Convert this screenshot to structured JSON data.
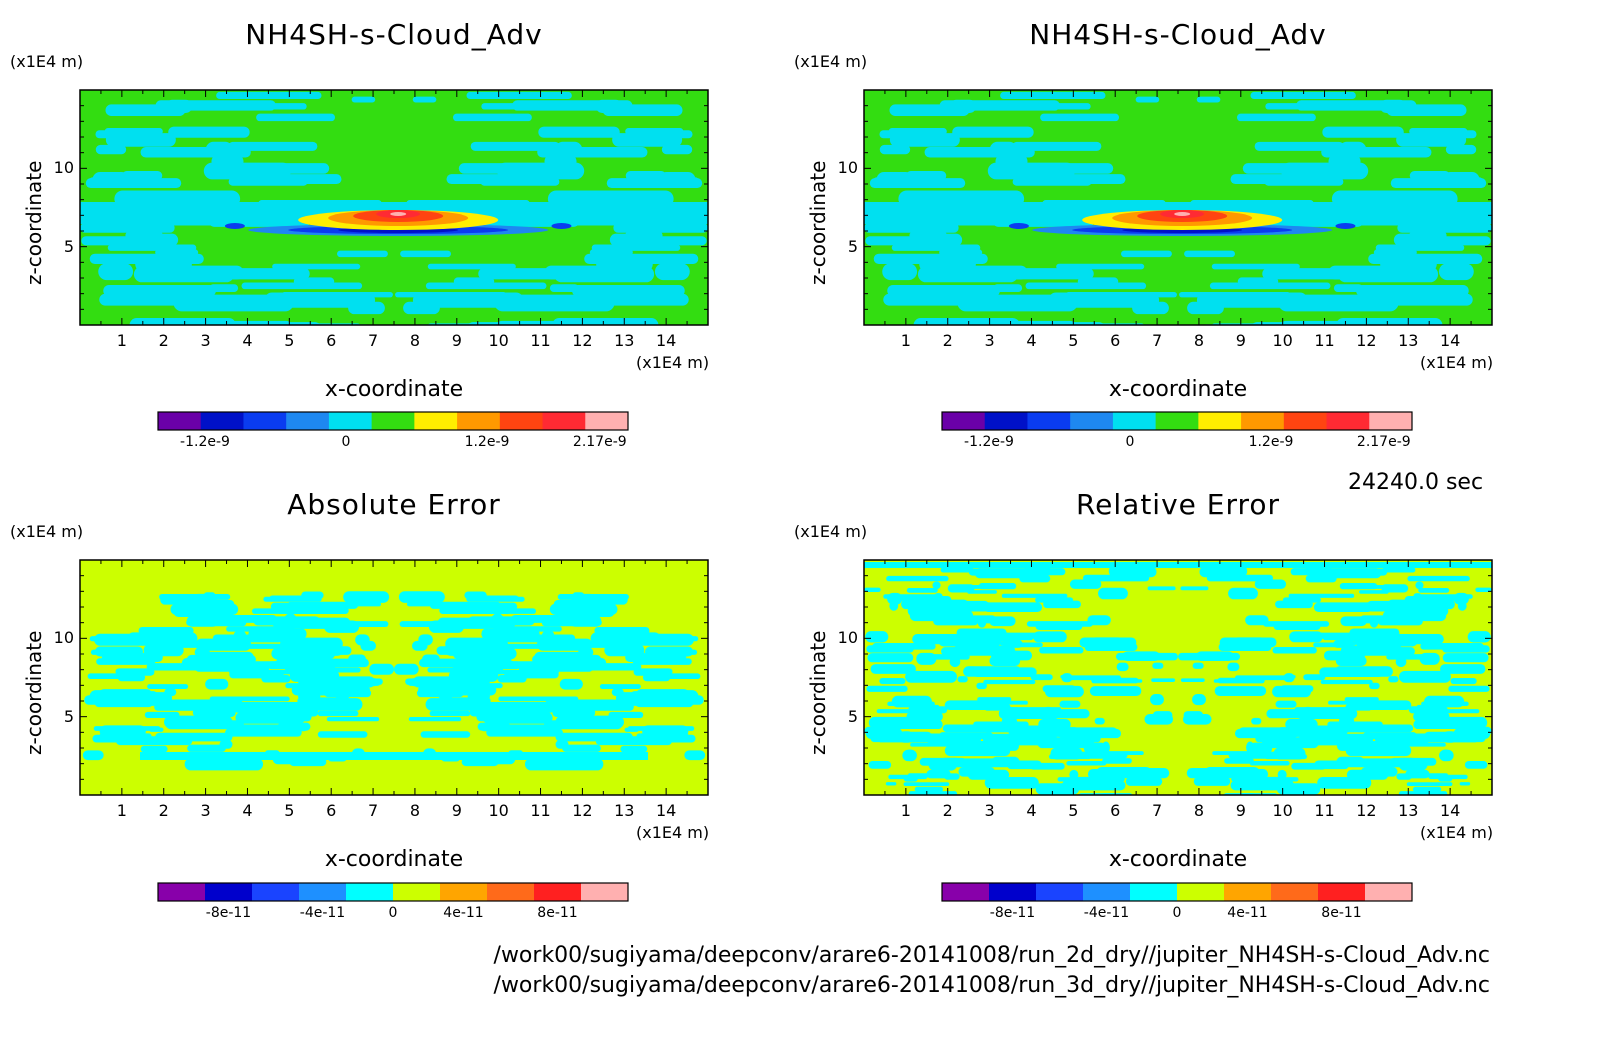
{
  "figure": {
    "time_label": "24240.0 sec",
    "file_paths": [
      "/work00/sugiyama/deepconv/arare6-20141008/run_2d_dry//jupiter_NH4SH-s-Cloud_Adv.nc",
      "/work00/sugiyama/deepconv/arare6-20141008/run_3d_dry//jupiter_NH4SH-s-Cloud_Adv.nc"
    ]
  },
  "colors": {
    "field_levels": [
      "#6a00a8",
      "#0011c8",
      "#0a3cf0",
      "#1e88f0",
      "#00e0f0",
      "#33dd11",
      "#ffee00",
      "#ff9900",
      "#ff4411",
      "#ff2a33",
      "#ffb0b0"
    ],
    "error_levels": [
      "#8800aa",
      "#0000cc",
      "#1a44ff",
      "#1e90ff",
      "#00ffff",
      "#ccff00",
      "#ffa500",
      "#ff6a1a",
      "#ff2020",
      "#ffb0b0"
    ]
  },
  "chart_data": [
    {
      "type": "heatmap",
      "panel": "top-left",
      "title": "NH4SH-s-Cloud_Adv",
      "xlabel": "x-coordinate",
      "ylabel": "z-coordinate",
      "x_unit": "(x1E4 m)",
      "y_unit": "(x1E4 m)",
      "xlim": [
        0,
        15
      ],
      "ylim": [
        0,
        15
      ],
      "xticks": [
        "1",
        "2",
        "3",
        "4",
        "5",
        "6",
        "7",
        "8",
        "9",
        "10",
        "11",
        "12",
        "13",
        "14"
      ],
      "yticks": [
        "5",
        "10"
      ],
      "colorbar_ticks": [
        "-1.2e-9",
        "0",
        "1.2e-9",
        "2.17e-9"
      ],
      "value_range": [
        -1.4e-09,
        2.17e-09
      ]
    },
    {
      "type": "heatmap",
      "panel": "top-right",
      "title": "NH4SH-s-Cloud_Adv",
      "xlabel": "x-coordinate",
      "ylabel": "z-coordinate",
      "x_unit": "(x1E4 m)",
      "y_unit": "(x1E4 m)",
      "xlim": [
        0,
        15
      ],
      "ylim": [
        0,
        15
      ],
      "xticks": [
        "1",
        "2",
        "3",
        "4",
        "5",
        "6",
        "7",
        "8",
        "9",
        "10",
        "11",
        "12",
        "13",
        "14"
      ],
      "yticks": [
        "5",
        "10"
      ],
      "colorbar_ticks": [
        "-1.2e-9",
        "0",
        "1.2e-9",
        "2.17e-9"
      ],
      "value_range": [
        -1.4e-09,
        2.17e-09
      ]
    },
    {
      "type": "heatmap",
      "panel": "bottom-left",
      "title": "Absolute Error",
      "xlabel": "x-coordinate",
      "ylabel": "z-coordinate",
      "x_unit": "(x1E4 m)",
      "y_unit": "(x1E4 m)",
      "xlim": [
        0,
        15
      ],
      "ylim": [
        0,
        15
      ],
      "xticks": [
        "1",
        "2",
        "3",
        "4",
        "5",
        "6",
        "7",
        "8",
        "9",
        "10",
        "11",
        "12",
        "13",
        "14"
      ],
      "yticks": [
        "5",
        "10"
      ],
      "colorbar_ticks": [
        "-8e-11",
        "-4e-11",
        "0",
        "4e-11",
        "8e-11"
      ],
      "value_range": [
        -1e-10,
        1e-10
      ]
    },
    {
      "type": "heatmap",
      "panel": "bottom-right",
      "title": "Relative Error",
      "xlabel": "x-coordinate",
      "ylabel": "z-coordinate",
      "x_unit": "(x1E4 m)",
      "y_unit": "(x1E4 m)",
      "xlim": [
        0,
        15
      ],
      "ylim": [
        0,
        15
      ],
      "xticks": [
        "1",
        "2",
        "3",
        "4",
        "5",
        "6",
        "7",
        "8",
        "9",
        "10",
        "11",
        "12",
        "13",
        "14"
      ],
      "yticks": [
        "5",
        "10"
      ],
      "colorbar_ticks": [
        "-8e-11",
        "-4e-11",
        "0",
        "4e-11",
        "8e-11"
      ],
      "value_range": [
        -1e-10,
        1e-10
      ]
    }
  ]
}
